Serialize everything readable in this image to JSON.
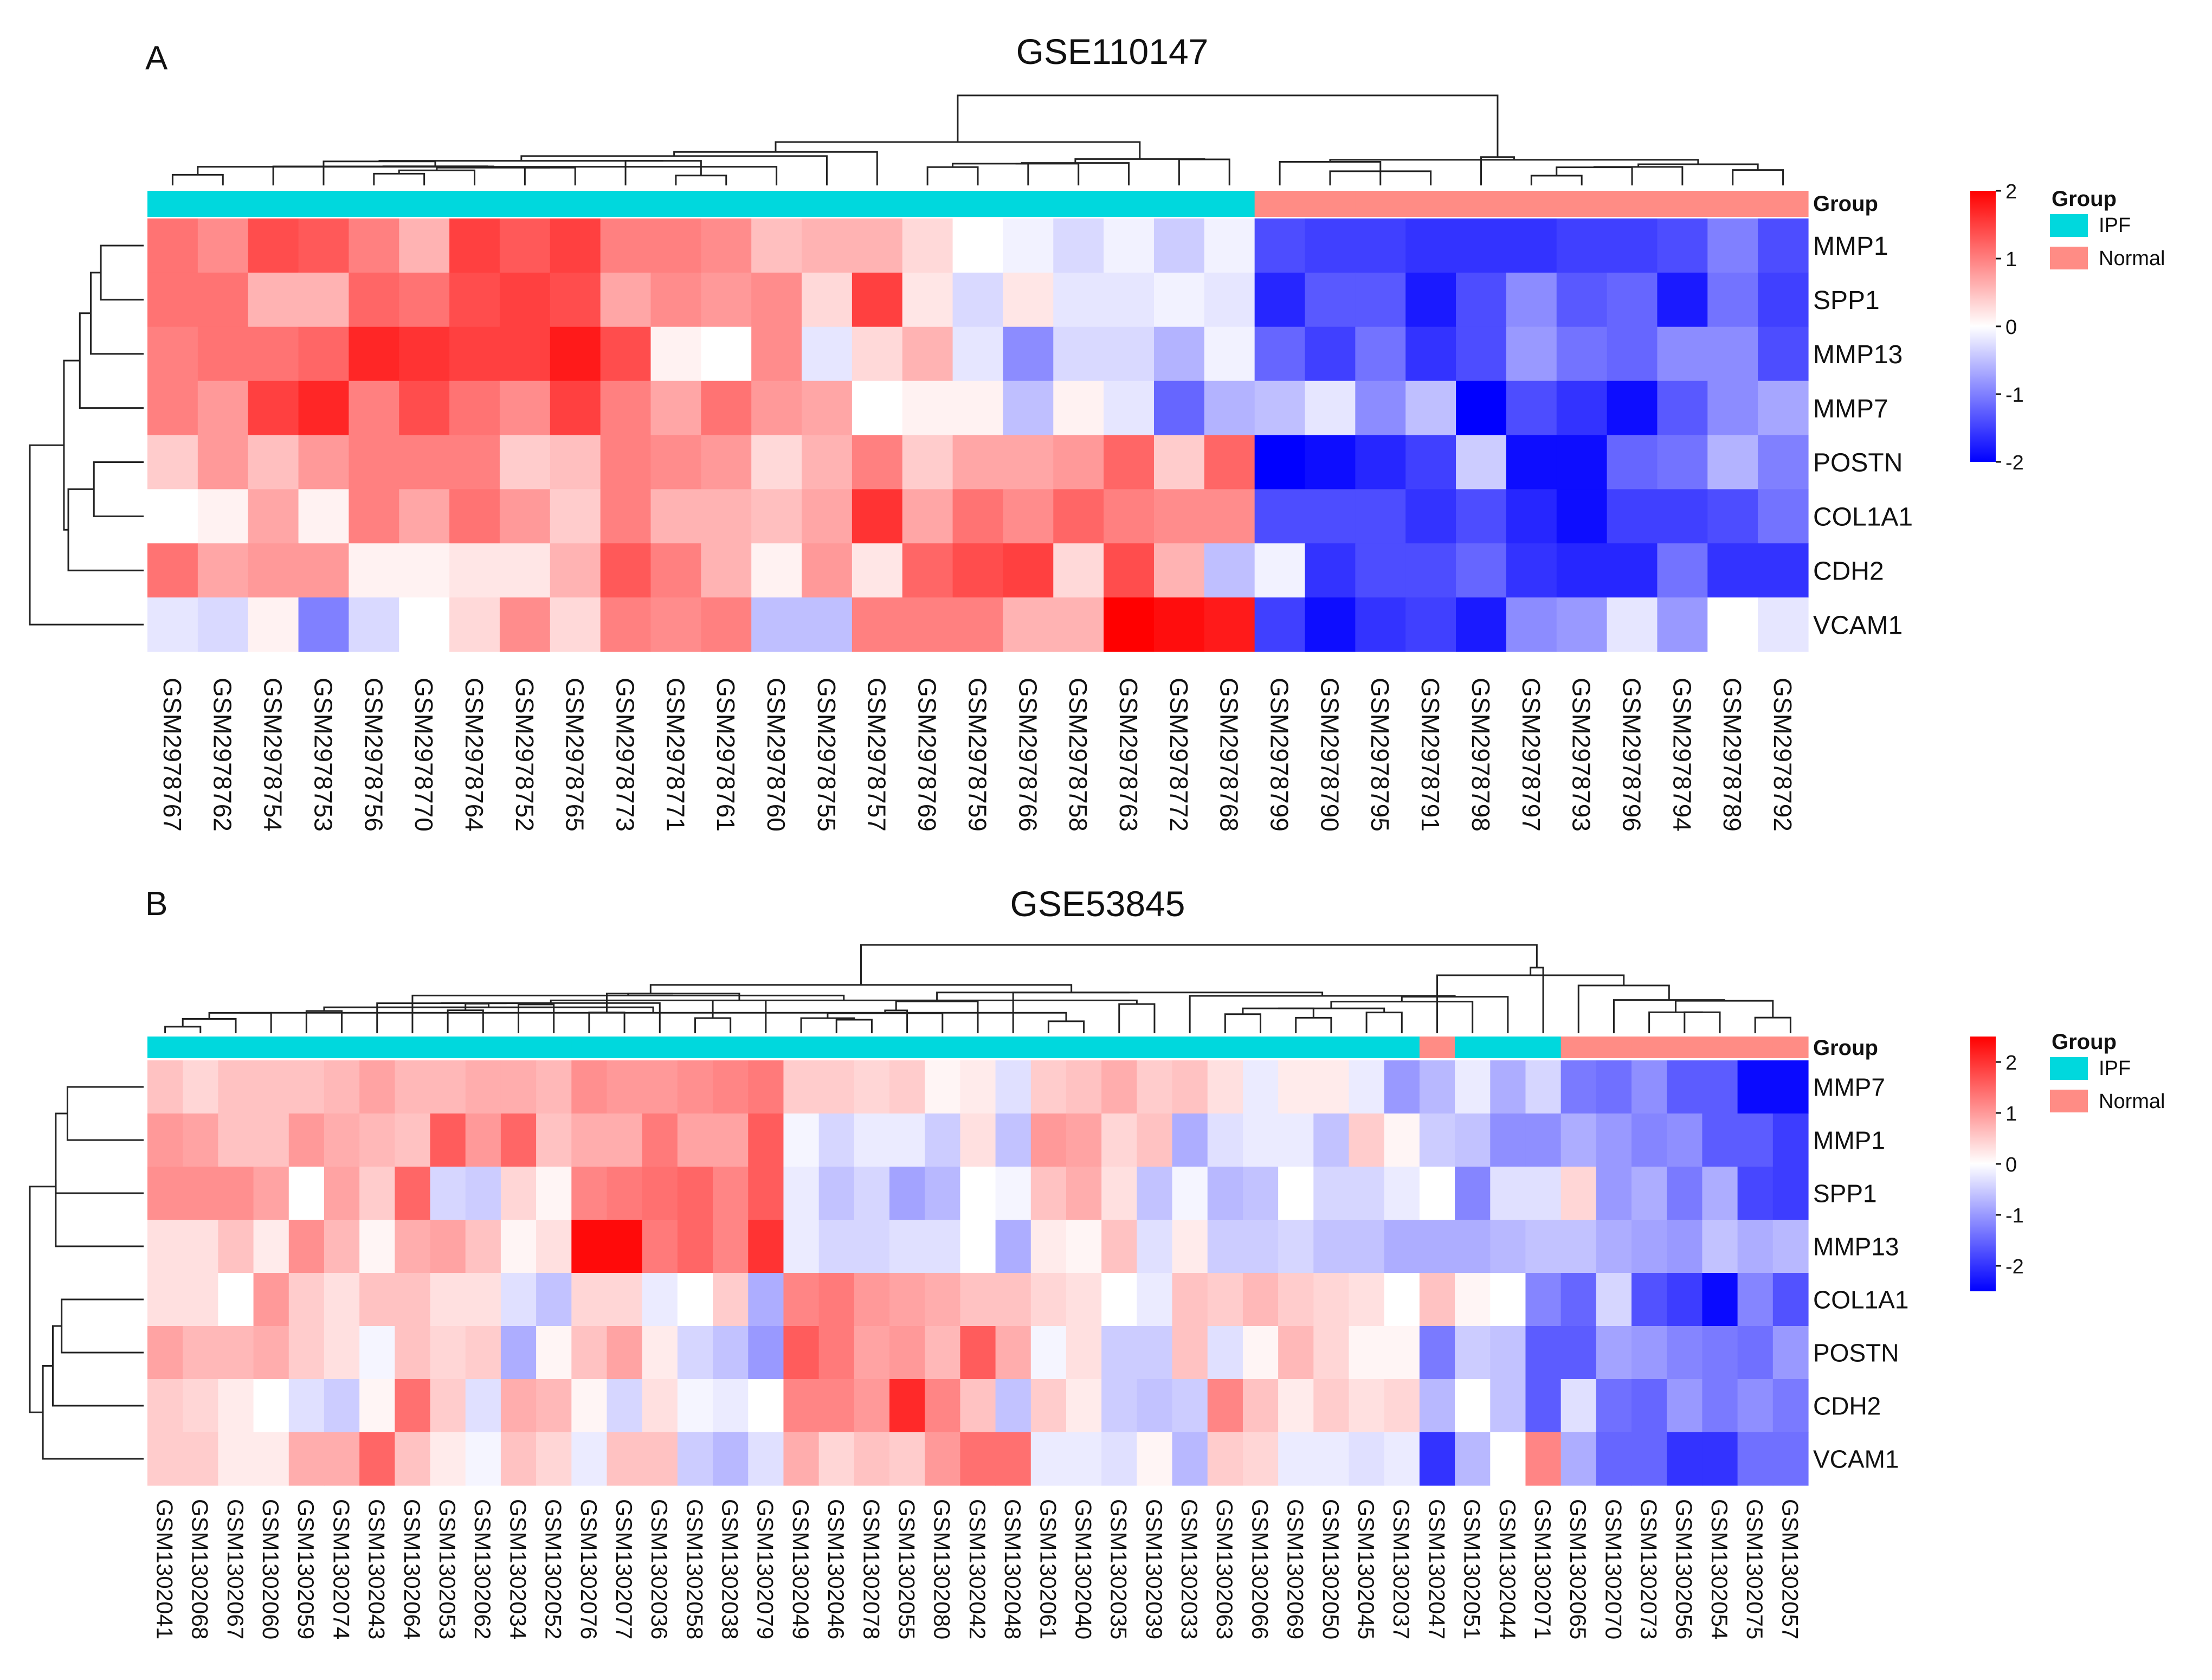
{
  "colors": {
    "low": "#0000FF",
    "mid": "#FFFFFF",
    "high": "#FF0000",
    "IPF": "#00D8DD",
    "Normal": "#FF8C85"
  },
  "chart_data": [
    {
      "type": "heatmap",
      "panel_label": "A",
      "title": "GSE110147",
      "annotation_title": "Group",
      "legend_title": "Group",
      "legend_entries": [
        "IPF",
        "Normal"
      ],
      "color_scale": {
        "min": -2,
        "max": 2,
        "ticks": [
          "2",
          "1",
          "0",
          "-1",
          "-2"
        ]
      },
      "genes": [
        "MMP1",
        "SPP1",
        "MMP13",
        "MMP7",
        "POSTN",
        "COL1A1",
        "CDH2",
        "VCAM1"
      ],
      "samples": [
        "GSM2978767",
        "GSM2978762",
        "GSM2978754",
        "GSM2978753",
        "GSM2978756",
        "GSM2978770",
        "GSM2978764",
        "GSM2978752",
        "GSM2978765",
        "GSM2978773",
        "GSM2978771",
        "GSM2978761",
        "GSM2978760",
        "GSM2978755",
        "GSM2978757",
        "GSM2978769",
        "GSM2978759",
        "GSM2978766",
        "GSM2978758",
        "GSM2978763",
        "GSM2978772",
        "GSM2978768",
        "GSM2978799",
        "GSM2978790",
        "GSM2978795",
        "GSM2978791",
        "GSM2978798",
        "GSM2978797",
        "GSM2978793",
        "GSM2978796",
        "GSM2978794",
        "GSM2978789",
        "GSM2978792"
      ],
      "groups": [
        "IPF",
        "IPF",
        "IPF",
        "IPF",
        "IPF",
        "IPF",
        "IPF",
        "IPF",
        "IPF",
        "IPF",
        "IPF",
        "IPF",
        "IPF",
        "IPF",
        "IPF",
        "IPF",
        "IPF",
        "IPF",
        "IPF",
        "IPF",
        "IPF",
        "IPF",
        "Normal",
        "Normal",
        "Normal",
        "Normal",
        "Normal",
        "Normal",
        "Normal",
        "Normal",
        "Normal",
        "Normal",
        "Normal"
      ],
      "values": [
        [
          1.1,
          0.9,
          1.4,
          1.3,
          1.0,
          0.6,
          1.5,
          1.3,
          1.5,
          1.0,
          1.0,
          0.9,
          0.5,
          0.6,
          0.6,
          0.3,
          0.0,
          -0.1,
          -0.3,
          -0.1,
          -0.4,
          -0.1,
          -1.4,
          -1.5,
          -1.5,
          -1.6,
          -1.6,
          -1.6,
          -1.5,
          -1.5,
          -1.4,
          -1.0,
          -1.4
        ],
        [
          1.1,
          1.1,
          0.6,
          0.6,
          1.2,
          1.1,
          1.4,
          1.5,
          1.4,
          0.7,
          0.9,
          0.8,
          0.9,
          0.3,
          1.5,
          0.2,
          -0.3,
          0.2,
          -0.2,
          -0.2,
          -0.1,
          -0.2,
          -1.7,
          -1.3,
          -1.3,
          -1.8,
          -1.4,
          -0.9,
          -1.3,
          -1.2,
          -1.8,
          -1.1,
          -1.5
        ],
        [
          1.0,
          1.1,
          1.1,
          1.2,
          1.7,
          1.6,
          1.5,
          1.5,
          1.8,
          1.4,
          0.1,
          0.0,
          0.9,
          -0.2,
          0.3,
          0.6,
          -0.2,
          -0.9,
          -0.3,
          -0.3,
          -0.6,
          -0.1,
          -1.2,
          -1.5,
          -1.1,
          -1.6,
          -1.4,
          -0.8,
          -1.1,
          -1.2,
          -0.9,
          -0.9,
          -1.4
        ],
        [
          1.0,
          0.8,
          1.5,
          1.7,
          1.0,
          1.4,
          1.1,
          0.9,
          1.5,
          1.0,
          0.7,
          1.1,
          0.8,
          0.7,
          0.0,
          0.1,
          0.1,
          -0.5,
          0.1,
          -0.2,
          -1.2,
          -0.6,
          -0.5,
          -0.2,
          -0.9,
          -0.5,
          -2.0,
          -1.4,
          -1.6,
          -1.9,
          -1.3,
          -0.9,
          -0.7
        ],
        [
          0.4,
          0.8,
          0.5,
          0.8,
          1.0,
          1.0,
          1.0,
          0.4,
          0.5,
          1.0,
          0.9,
          0.8,
          0.3,
          0.6,
          1.0,
          0.4,
          0.7,
          0.7,
          0.8,
          1.2,
          0.4,
          1.2,
          -2.0,
          -1.9,
          -1.7,
          -1.5,
          -0.4,
          -1.9,
          -1.9,
          -1.2,
          -1.1,
          -0.6,
          -1.0
        ],
        [
          0.0,
          0.1,
          0.7,
          0.1,
          1.0,
          0.7,
          1.1,
          0.8,
          0.4,
          1.0,
          0.6,
          0.6,
          0.5,
          0.7,
          1.6,
          0.7,
          1.1,
          0.9,
          1.2,
          1.0,
          0.9,
          0.9,
          -1.4,
          -1.4,
          -1.4,
          -1.6,
          -1.4,
          -1.7,
          -1.9,
          -1.5,
          -1.5,
          -1.4,
          -1.1
        ],
        [
          1.1,
          0.7,
          0.8,
          0.8,
          0.1,
          0.1,
          0.2,
          0.2,
          0.6,
          1.3,
          1.0,
          0.6,
          0.1,
          0.8,
          0.2,
          1.2,
          1.4,
          1.5,
          0.3,
          1.4,
          0.6,
          -0.5,
          -0.1,
          -1.6,
          -1.4,
          -1.4,
          -1.2,
          -1.6,
          -1.7,
          -1.7,
          -1.1,
          -1.6,
          -1.6
        ],
        [
          -0.2,
          -0.3,
          0.1,
          -1.0,
          -0.3,
          0.0,
          0.3,
          0.9,
          0.3,
          1.0,
          0.9,
          1.0,
          -0.5,
          -0.5,
          1.0,
          1.0,
          1.0,
          0.6,
          0.6,
          2.0,
          1.9,
          1.8,
          -1.5,
          -1.9,
          -1.6,
          -1.5,
          -1.8,
          -0.9,
          -0.8,
          -0.2,
          -0.8,
          0.0,
          -0.2
        ]
      ]
    },
    {
      "type": "heatmap",
      "panel_label": "B",
      "title": "GSE53845",
      "annotation_title": "Group",
      "legend_title": "Group",
      "legend_entries": [
        "IPF",
        "Normal"
      ],
      "color_scale": {
        "min": -2.5,
        "max": 2.5,
        "ticks": [
          "2",
          "1",
          "0",
          "-1",
          "-2"
        ]
      },
      "genes": [
        "MMP7",
        "MMP1",
        "SPP1",
        "MMP13",
        "COL1A1",
        "POSTN",
        "CDH2",
        "VCAM1"
      ],
      "samples": [
        "GSM1302041",
        "GSM1302068",
        "GSM1302067",
        "GSM1302060",
        "GSM1302059",
        "GSM1302074",
        "GSM1302043",
        "GSM1302064",
        "GSM1302053",
        "GSM1302062",
        "GSM1302034",
        "GSM1302052",
        "GSM1302076",
        "GSM1302077",
        "GSM1302036",
        "GSM1302058",
        "GSM1302038",
        "GSM1302079",
        "GSM1302049",
        "GSM1302046",
        "GSM1302078",
        "GSM1302055",
        "GSM1302080",
        "GSM1302042",
        "GSM1302048",
        "GSM1302061",
        "GSM1302040",
        "GSM1302035",
        "GSM1302039",
        "GSM1302033",
        "GSM1302063",
        "GSM1302066",
        "GSM1302069",
        "GSM1302050",
        "GSM1302045",
        "GSM1302037",
        "GSM1302047",
        "GSM1302051",
        "GSM1302044",
        "GSM1302071",
        "GSM1302065",
        "GSM1302070",
        "GSM1302073",
        "GSM1302056",
        "GSM1302054",
        "GSM1302075",
        "GSM1302057"
      ],
      "groups": [
        "IPF",
        "IPF",
        "IPF",
        "IPF",
        "IPF",
        "IPF",
        "IPF",
        "IPF",
        "IPF",
        "IPF",
        "IPF",
        "IPF",
        "IPF",
        "IPF",
        "IPF",
        "IPF",
        "IPF",
        "IPF",
        "IPF",
        "IPF",
        "IPF",
        "IPF",
        "IPF",
        "IPF",
        "IPF",
        "IPF",
        "IPF",
        "IPF",
        "IPF",
        "IPF",
        "IPF",
        "IPF",
        "IPF",
        "IPF",
        "IPF",
        "IPF",
        "Normal",
        "IPF",
        "IPF",
        "IPF",
        "Normal",
        "Normal",
        "Normal",
        "Normal",
        "Normal",
        "Normal",
        "Normal"
      ],
      "values": [
        [
          0.6,
          0.4,
          0.6,
          0.6,
          0.6,
          0.7,
          0.9,
          0.7,
          0.7,
          0.8,
          0.8,
          0.7,
          1.1,
          1.0,
          1.0,
          1.1,
          1.2,
          1.3,
          0.5,
          0.5,
          0.4,
          0.5,
          0.1,
          0.2,
          -0.3,
          0.5,
          0.6,
          0.8,
          0.5,
          0.6,
          0.3,
          -0.2,
          0.2,
          0.2,
          -0.2,
          -1.0,
          -0.7,
          -0.2,
          -0.8,
          -0.4,
          -1.3,
          -1.4,
          -1.1,
          -1.6,
          -1.6,
          -2.4,
          -2.4
        ],
        [
          1.0,
          0.9,
          0.6,
          0.6,
          1.0,
          0.8,
          0.7,
          0.6,
          1.6,
          1.0,
          1.5,
          0.6,
          0.8,
          0.8,
          1.3,
          0.9,
          0.9,
          1.6,
          -0.1,
          -0.4,
          -0.2,
          -0.2,
          -0.5,
          0.3,
          -0.6,
          1.0,
          0.9,
          0.4,
          0.6,
          -0.8,
          -0.3,
          -0.2,
          -0.2,
          -0.6,
          0.5,
          0.1,
          -0.5,
          -0.6,
          -1.1,
          -1.1,
          -0.8,
          -1.0,
          -1.2,
          -1.1,
          -1.6,
          -1.6,
          -1.9
        ],
        [
          1.1,
          1.1,
          1.1,
          0.9,
          0.0,
          0.9,
          0.5,
          1.5,
          -0.4,
          -0.5,
          0.4,
          0.1,
          1.2,
          1.3,
          1.4,
          1.5,
          1.2,
          1.6,
          -0.2,
          -0.6,
          -0.4,
          -0.9,
          -0.7,
          0.0,
          -0.1,
          0.6,
          0.8,
          0.3,
          -0.6,
          -0.1,
          -0.7,
          -0.6,
          0.0,
          -0.4,
          -0.4,
          -0.2,
          0.0,
          -1.2,
          -0.3,
          -0.3,
          0.4,
          -1.0,
          -0.8,
          -1.3,
          -0.8,
          -1.8,
          -1.9
        ],
        [
          0.3,
          0.3,
          0.6,
          0.2,
          1.1,
          0.7,
          0.1,
          0.8,
          0.9,
          0.6,
          0.1,
          0.3,
          2.4,
          2.4,
          1.3,
          1.5,
          1.2,
          2.0,
          -0.2,
          -0.4,
          -0.4,
          -0.3,
          -0.3,
          0.0,
          -0.8,
          0.2,
          0.1,
          0.6,
          -0.3,
          0.2,
          -0.5,
          -0.5,
          -0.4,
          -0.6,
          -0.6,
          -0.8,
          -0.8,
          -0.8,
          -0.7,
          -0.6,
          -0.6,
          -0.8,
          -0.9,
          -1.0,
          -0.6,
          -0.8,
          -0.7
        ],
        [
          0.3,
          0.3,
          0.0,
          1.0,
          0.5,
          0.3,
          0.6,
          0.6,
          0.3,
          0.3,
          -0.3,
          -0.6,
          0.4,
          0.4,
          -0.2,
          0.0,
          0.5,
          -0.8,
          1.2,
          1.3,
          1.0,
          0.9,
          0.8,
          0.6,
          0.6,
          0.4,
          0.3,
          0.0,
          -0.2,
          0.6,
          0.5,
          0.7,
          0.5,
          0.4,
          0.3,
          0.0,
          0.6,
          0.1,
          0.0,
          -1.2,
          -1.5,
          -0.4,
          -1.7,
          -1.9,
          -2.4,
          -1.2,
          -1.7
        ],
        [
          0.9,
          0.7,
          0.7,
          0.8,
          0.5,
          0.3,
          -0.1,
          0.6,
          0.4,
          0.5,
          -0.8,
          0.1,
          0.6,
          0.9,
          0.2,
          -0.4,
          -0.6,
          -1.0,
          1.6,
          1.3,
          0.9,
          1.0,
          0.7,
          1.6,
          0.8,
          -0.1,
          0.3,
          -0.5,
          -0.5,
          0.6,
          -0.3,
          0.1,
          0.7,
          0.4,
          0.1,
          0.1,
          -1.3,
          -0.5,
          -0.6,
          -1.6,
          -1.6,
          -0.9,
          -1.0,
          -1.2,
          -1.3,
          -1.4,
          -1.0
        ],
        [
          0.5,
          0.4,
          0.2,
          0.0,
          -0.3,
          -0.5,
          0.1,
          1.4,
          0.5,
          -0.3,
          0.8,
          0.7,
          0.1,
          -0.4,
          0.3,
          -0.1,
          -0.2,
          0.0,
          1.2,
          1.2,
          1.0,
          2.1,
          1.2,
          0.6,
          -0.6,
          0.5,
          0.2,
          -0.5,
          -0.6,
          -0.5,
          1.2,
          0.6,
          0.2,
          0.5,
          0.3,
          0.4,
          -0.7,
          0.0,
          -0.6,
          -1.6,
          -0.3,
          -1.4,
          -1.5,
          -1.0,
          -1.3,
          -1.1,
          -1.3
        ],
        [
          0.5,
          0.5,
          0.2,
          0.2,
          0.8,
          0.8,
          1.5,
          0.6,
          0.2,
          -0.1,
          0.6,
          0.4,
          -0.2,
          0.6,
          0.6,
          -0.5,
          -0.7,
          -0.3,
          0.8,
          0.4,
          0.6,
          0.5,
          1.0,
          1.4,
          1.4,
          -0.2,
          -0.2,
          -0.3,
          0.1,
          -0.7,
          0.5,
          0.4,
          -0.2,
          -0.2,
          -0.3,
          -0.2,
          -2.0,
          -0.7,
          0.0,
          1.2,
          -0.8,
          -1.5,
          -1.5,
          -2.0,
          -2.0,
          -1.4,
          -1.4
        ]
      ]
    }
  ]
}
